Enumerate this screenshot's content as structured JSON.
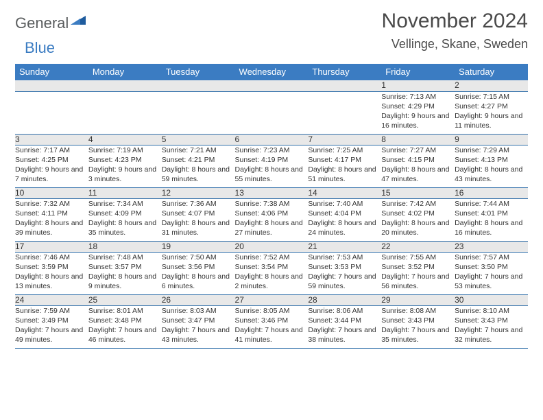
{
  "logo": {
    "part1": "General",
    "part2": "Blue"
  },
  "title": "November 2024",
  "location": "Vellinge, Skane, Sweden",
  "colors": {
    "header_bg": "#3b7cc2",
    "header_text": "#ffffff",
    "daynum_bg": "#e8e8e8",
    "border": "#2f6ea9",
    "logo_gray": "#5a5d5e",
    "logo_blue": "#3b7cc2",
    "text": "#333333",
    "title_text": "#4a4a4a"
  },
  "weekdays": [
    "Sunday",
    "Monday",
    "Tuesday",
    "Wednesday",
    "Thursday",
    "Friday",
    "Saturday"
  ],
  "weeks": [
    {
      "nums": [
        "",
        "",
        "",
        "",
        "",
        "1",
        "2"
      ],
      "cells": [
        "",
        "",
        "",
        "",
        "",
        "Sunrise: 7:13 AM\nSunset: 4:29 PM\nDaylight: 9 hours and 16 minutes.",
        "Sunrise: 7:15 AM\nSunset: 4:27 PM\nDaylight: 9 hours and 11 minutes."
      ]
    },
    {
      "nums": [
        "3",
        "4",
        "5",
        "6",
        "7",
        "8",
        "9"
      ],
      "cells": [
        "Sunrise: 7:17 AM\nSunset: 4:25 PM\nDaylight: 9 hours and 7 minutes.",
        "Sunrise: 7:19 AM\nSunset: 4:23 PM\nDaylight: 9 hours and 3 minutes.",
        "Sunrise: 7:21 AM\nSunset: 4:21 PM\nDaylight: 8 hours and 59 minutes.",
        "Sunrise: 7:23 AM\nSunset: 4:19 PM\nDaylight: 8 hours and 55 minutes.",
        "Sunrise: 7:25 AM\nSunset: 4:17 PM\nDaylight: 8 hours and 51 minutes.",
        "Sunrise: 7:27 AM\nSunset: 4:15 PM\nDaylight: 8 hours and 47 minutes.",
        "Sunrise: 7:29 AM\nSunset: 4:13 PM\nDaylight: 8 hours and 43 minutes."
      ]
    },
    {
      "nums": [
        "10",
        "11",
        "12",
        "13",
        "14",
        "15",
        "16"
      ],
      "cells": [
        "Sunrise: 7:32 AM\nSunset: 4:11 PM\nDaylight: 8 hours and 39 minutes.",
        "Sunrise: 7:34 AM\nSunset: 4:09 PM\nDaylight: 8 hours and 35 minutes.",
        "Sunrise: 7:36 AM\nSunset: 4:07 PM\nDaylight: 8 hours and 31 minutes.",
        "Sunrise: 7:38 AM\nSunset: 4:06 PM\nDaylight: 8 hours and 27 minutes.",
        "Sunrise: 7:40 AM\nSunset: 4:04 PM\nDaylight: 8 hours and 24 minutes.",
        "Sunrise: 7:42 AM\nSunset: 4:02 PM\nDaylight: 8 hours and 20 minutes.",
        "Sunrise: 7:44 AM\nSunset: 4:01 PM\nDaylight: 8 hours and 16 minutes."
      ]
    },
    {
      "nums": [
        "17",
        "18",
        "19",
        "20",
        "21",
        "22",
        "23"
      ],
      "cells": [
        "Sunrise: 7:46 AM\nSunset: 3:59 PM\nDaylight: 8 hours and 13 minutes.",
        "Sunrise: 7:48 AM\nSunset: 3:57 PM\nDaylight: 8 hours and 9 minutes.",
        "Sunrise: 7:50 AM\nSunset: 3:56 PM\nDaylight: 8 hours and 6 minutes.",
        "Sunrise: 7:52 AM\nSunset: 3:54 PM\nDaylight: 8 hours and 2 minutes.",
        "Sunrise: 7:53 AM\nSunset: 3:53 PM\nDaylight: 7 hours and 59 minutes.",
        "Sunrise: 7:55 AM\nSunset: 3:52 PM\nDaylight: 7 hours and 56 minutes.",
        "Sunrise: 7:57 AM\nSunset: 3:50 PM\nDaylight: 7 hours and 53 minutes."
      ]
    },
    {
      "nums": [
        "24",
        "25",
        "26",
        "27",
        "28",
        "29",
        "30"
      ],
      "cells": [
        "Sunrise: 7:59 AM\nSunset: 3:49 PM\nDaylight: 7 hours and 49 minutes.",
        "Sunrise: 8:01 AM\nSunset: 3:48 PM\nDaylight: 7 hours and 46 minutes.",
        "Sunrise: 8:03 AM\nSunset: 3:47 PM\nDaylight: 7 hours and 43 minutes.",
        "Sunrise: 8:05 AM\nSunset: 3:46 PM\nDaylight: 7 hours and 41 minutes.",
        "Sunrise: 8:06 AM\nSunset: 3:44 PM\nDaylight: 7 hours and 38 minutes.",
        "Sunrise: 8:08 AM\nSunset: 3:43 PM\nDaylight: 7 hours and 35 minutes.",
        "Sunrise: 8:10 AM\nSunset: 3:43 PM\nDaylight: 7 hours and 32 minutes."
      ]
    }
  ]
}
